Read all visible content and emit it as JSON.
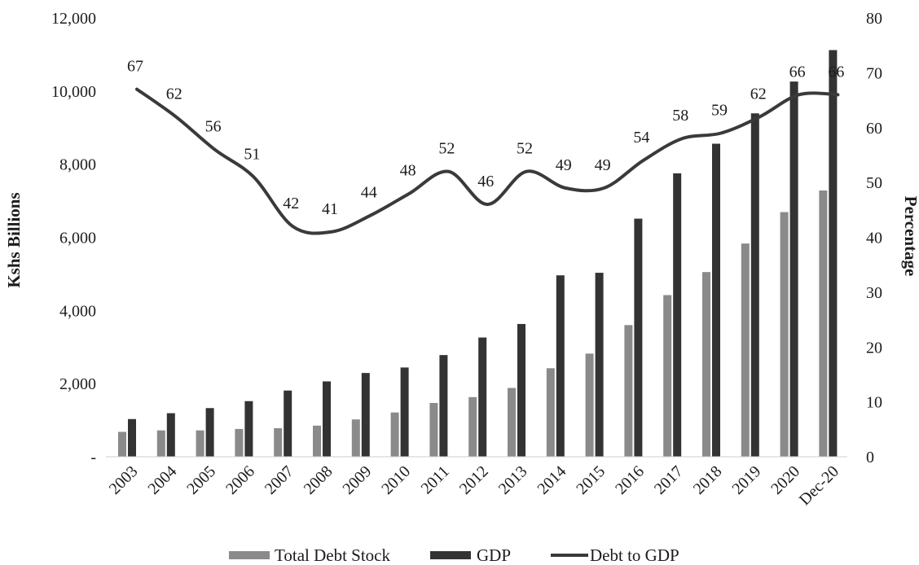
{
  "chart_data": {
    "type": "bar",
    "categories": [
      "2003",
      "2004",
      "2005",
      "2006",
      "2007",
      "2008",
      "2009",
      "2010",
      "2011",
      "2012",
      "2013",
      "2014",
      "2015",
      "2016",
      "2017",
      "2018",
      "2019",
      "2020",
      "Dec-20"
    ],
    "series": [
      {
        "name": "Total Debt Stock",
        "type": "bar",
        "axis": "left",
        "color": "#8a8a8a",
        "values": [
          680,
          720,
          720,
          760,
          780,
          850,
          1020,
          1210,
          1470,
          1630,
          1880,
          2420,
          2820,
          3600,
          4420,
          5050,
          5830,
          6690,
          7280
        ]
      },
      {
        "name": "GDP",
        "type": "bar",
        "axis": "left",
        "color": "#333333",
        "values": [
          1030,
          1190,
          1330,
          1520,
          1810,
          2060,
          2290,
          2440,
          2780,
          3260,
          3630,
          4960,
          5030,
          6510,
          7750,
          8560,
          9390,
          10260,
          11120
        ]
      },
      {
        "name": "Debt to GDP",
        "type": "line",
        "axis": "right",
        "color": "#3a3a3a",
        "values": [
          67,
          62,
          56,
          51,
          42,
          41,
          44,
          48,
          52,
          46,
          52,
          49,
          49,
          54,
          58,
          59,
          62,
          66,
          66
        ]
      }
    ],
    "data_labels": [
      "67",
      "62",
      "56",
      "51",
      "42",
      "41",
      "44",
      "48",
      "52",
      "46",
      "52",
      "49",
      "49",
      "54",
      "58",
      "59",
      "62",
      "66",
      "66"
    ],
    "ylabel": "Kshs Billions",
    "y2label": "Percentage",
    "ylim": [
      0,
      12000
    ],
    "y2lim": [
      0,
      80
    ],
    "yticks": [
      "-",
      "2,000",
      "4,000",
      "6,000",
      "8,000",
      "10,000",
      "12,000"
    ],
    "y2ticks": [
      "0",
      "10",
      "20",
      "30",
      "40",
      "50",
      "60",
      "70",
      "80"
    ],
    "legend": {
      "position": "bottom",
      "items": [
        "Total Debt Stock",
        "GDP",
        "Debt to GDP"
      ]
    }
  }
}
